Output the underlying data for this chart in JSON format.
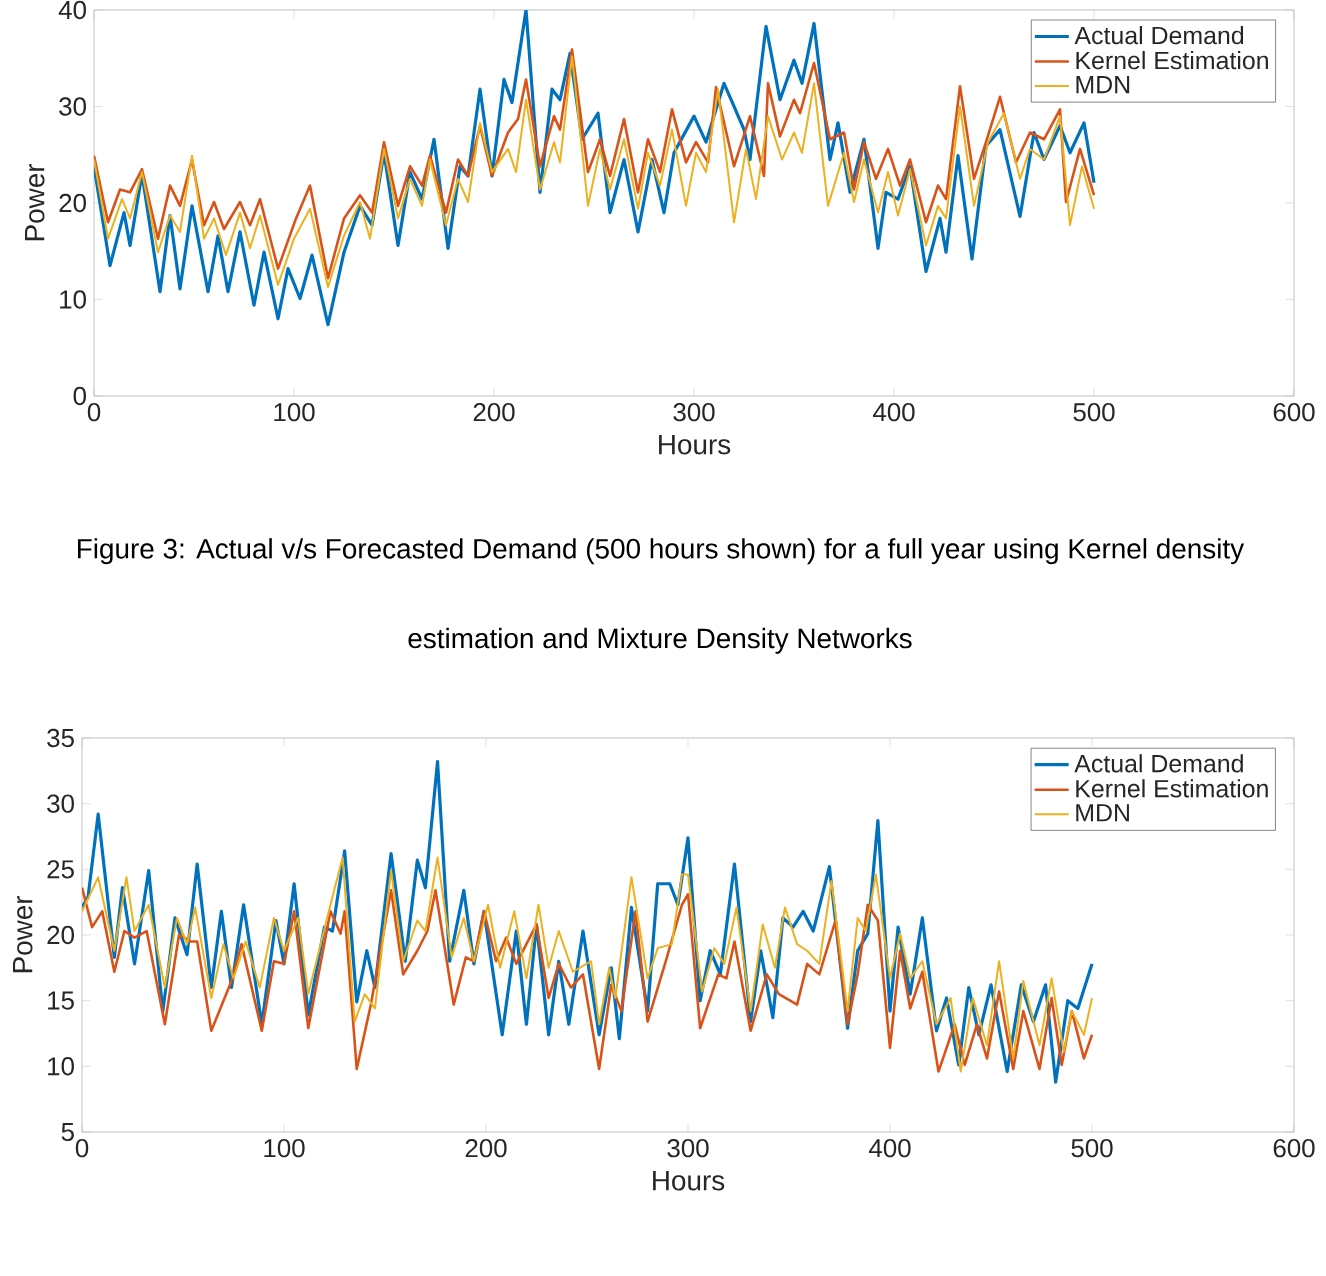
{
  "chart_data": [
    {
      "type": "line",
      "xlabel": "Hours",
      "ylabel": "Power",
      "xlim": [
        0,
        600
      ],
      "xticks": [
        0,
        100,
        200,
        300,
        400,
        500,
        600
      ],
      "ylim": [
        0,
        40
      ],
      "yticks": [
        0,
        10,
        20,
        30,
        40
      ],
      "legend": "top right",
      "annotations": [
        "Figure 3: Actual v/s Forecasted Demand (500 hours shown) for a full year using Kernel density estimation and Mixture Density Networks"
      ],
      "series": [
        {
          "name": "Actual Demand",
          "color": "#0072bd",
          "x": [
            0,
            8,
            15,
            18,
            24,
            33,
            38,
            43,
            49,
            57,
            62,
            67,
            73,
            80,
            85,
            92,
            97,
            103,
            109,
            117,
            125,
            133,
            139,
            145,
            152,
            158,
            164,
            170,
            177,
            183,
            187,
            193,
            199,
            205,
            209,
            216,
            223,
            229,
            233,
            238,
            244,
            252,
            258,
            265,
            272,
            279,
            285,
            290,
            300,
            306,
            315,
            320,
            325,
            328,
            336,
            343,
            350,
            354,
            360,
            368,
            372,
            378,
            385,
            392,
            396,
            402,
            408,
            416,
            423,
            426,
            432,
            439,
            446,
            453,
            463,
            470,
            475,
            483,
            488,
            495,
            500
          ],
          "values": [
            23.8,
            13.5,
            19,
            15.6,
            23,
            10.8,
            18.7,
            11.1,
            19.7,
            10.8,
            16.6,
            10.8,
            17,
            9.4,
            14.9,
            8,
            13.2,
            10.1,
            14.6,
            7.4,
            14.9,
            19.7,
            17.7,
            25.2,
            15.6,
            23.2,
            20.4,
            26.6,
            15.3,
            23.8,
            22.8,
            31.8,
            22.8,
            32.8,
            30.4,
            40,
            21.1,
            31.8,
            30.7,
            35.5,
            26.6,
            29.3,
            19,
            24.5,
            17,
            24.5,
            19,
            25.2,
            29,
            26.3,
            32.4,
            30,
            27.6,
            24.5,
            38.3,
            30.7,
            34.8,
            32.4,
            38.6,
            24.5,
            28.3,
            21.1,
            26.6,
            15.3,
            21.1,
            20.4,
            23.8,
            12.9,
            18.4,
            14.9,
            24.9,
            14.2,
            25.9,
            27.6,
            18.6,
            27.3,
            24.5,
            28,
            25.2,
            28.3,
            22.1
          ]
        },
        {
          "name": "Kernel Estimation",
          "color": "#d95319",
          "x": [
            0,
            7,
            13,
            18,
            24,
            32,
            38,
            43,
            49,
            55,
            60,
            65,
            73,
            78,
            83,
            92,
            101,
            108,
            117,
            125,
            133,
            139,
            145,
            152,
            158,
            164,
            168,
            176,
            182,
            187,
            193,
            199,
            207,
            212,
            216,
            223,
            230,
            233,
            239,
            247,
            253,
            258,
            265,
            272,
            277,
            283,
            289,
            296,
            301,
            307,
            311,
            320,
            328,
            335,
            337,
            343,
            350,
            353,
            360,
            368,
            375,
            380,
            385,
            391,
            397,
            403,
            408,
            416,
            422,
            426,
            433,
            440,
            446,
            453,
            461,
            468,
            475,
            483,
            486,
            493,
            500
          ],
          "values": [
            24.9,
            18,
            21.4,
            21.1,
            23.5,
            16.3,
            21.8,
            19.7,
            24.5,
            17.7,
            20.1,
            17.3,
            20.1,
            17.7,
            20.4,
            13.2,
            18.4,
            21.8,
            12.2,
            18.4,
            20.8,
            19,
            26.3,
            19.7,
            23.8,
            21.8,
            24.9,
            19,
            24.5,
            22.8,
            28,
            22.8,
            27.3,
            28.7,
            32.8,
            23.8,
            29,
            27.6,
            35.9,
            23.2,
            26.6,
            22.8,
            28.7,
            21.1,
            26.6,
            23.2,
            29.7,
            24.2,
            26.3,
            24.2,
            32,
            23.8,
            29,
            22.8,
            32.4,
            26.9,
            30.7,
            29.3,
            34.5,
            26.6,
            27.3,
            21.4,
            26.3,
            22.5,
            25.6,
            21.8,
            24.5,
            18,
            21.8,
            20.4,
            32.1,
            22.5,
            26.3,
            31,
            24.2,
            27.3,
            26.6,
            29.7,
            20.1,
            25.6,
            20.8
          ]
        },
        {
          "name": "MDN",
          "color": "#edb120",
          "x": [
            0,
            7,
            14,
            18,
            24,
            32,
            38,
            43,
            49,
            55,
            60,
            66,
            73,
            78,
            83,
            92,
            100,
            108,
            117,
            125,
            133,
            138,
            145,
            152,
            158,
            164,
            168,
            176,
            182,
            187,
            193,
            199,
            207,
            211,
            216,
            223,
            230,
            233,
            239,
            247,
            253,
            258,
            265,
            272,
            277,
            283,
            289,
            296,
            301,
            306,
            312,
            320,
            326,
            331,
            337,
            344,
            350,
            354,
            360,
            367,
            375,
            380,
            385,
            392,
            397,
            402,
            408,
            416,
            422,
            426,
            433,
            440,
            447,
            455,
            463,
            468,
            475,
            483,
            488,
            494,
            500
          ],
          "values": [
            24.5,
            16.3,
            20.4,
            18.4,
            23.2,
            14.9,
            18.7,
            17,
            24.9,
            16.3,
            18.4,
            14.6,
            19,
            15.3,
            18.7,
            11.5,
            16.3,
            19.4,
            11.3,
            16.6,
            20.1,
            16.3,
            25.6,
            18.4,
            22.5,
            19.7,
            24.5,
            17.7,
            22.5,
            20.1,
            28.3,
            23.2,
            25.6,
            23.2,
            30.7,
            21.4,
            26.3,
            24.2,
            35.2,
            19.7,
            25.6,
            21.4,
            26.6,
            19.4,
            25.2,
            21.8,
            27.6,
            19.7,
            25.2,
            23.2,
            31.8,
            18,
            25.6,
            20.4,
            29,
            24.5,
            27.3,
            25.2,
            32.4,
            19.7,
            25.2,
            20.1,
            24.5,
            19,
            23.2,
            18.7,
            23.5,
            15.6,
            19.7,
            18.4,
            30,
            19.7,
            26.3,
            29.3,
            22.5,
            25.6,
            24.5,
            29,
            17.7,
            23.8,
            19.4
          ]
        }
      ]
    },
    {
      "type": "line",
      "xlabel": "Hours",
      "ylabel": "Power",
      "xlim": [
        0,
        600
      ],
      "xticks": [
        0,
        100,
        200,
        300,
        400,
        500,
        600
      ],
      "ylim": [
        5,
        35
      ],
      "yticks": [
        5,
        10,
        15,
        20,
        25,
        30,
        35
      ],
      "legend": "top right",
      "series": [
        {
          "name": "Actual Demand",
          "color": "#0072bd",
          "x": [
            0,
            3,
            8,
            16,
            20,
            26,
            33,
            40,
            46,
            52,
            57,
            64,
            69,
            74,
            80,
            89,
            96,
            100,
            105,
            112,
            120,
            124,
            130,
            136,
            141,
            145,
            153,
            160,
            166,
            170,
            176,
            182,
            189,
            194,
            199,
            208,
            215,
            220,
            225,
            231,
            236,
            241,
            248,
            256,
            262,
            266,
            272,
            280,
            285,
            291,
            295,
            300,
            306,
            311,
            316,
            323,
            331,
            336,
            342,
            347,
            352,
            357,
            362,
            370,
            379,
            384,
            389,
            394,
            400,
            404,
            410,
            416,
            423,
            428,
            434,
            439,
            444,
            450,
            458,
            465,
            471,
            477,
            482,
            488,
            493,
            500
          ],
          "values": [
            22.1,
            22.9,
            29.2,
            18.3,
            23.6,
            17.8,
            24.9,
            14.2,
            21.3,
            18.5,
            25.4,
            16,
            21.8,
            16,
            22.3,
            13.2,
            21.1,
            17.8,
            23.9,
            13.9,
            20.6,
            20.3,
            26.4,
            14.9,
            18.8,
            16,
            26.2,
            18,
            25.7,
            23.6,
            33.2,
            18,
            23.4,
            17.8,
            21.8,
            12.4,
            20.3,
            13.2,
            20.8,
            12.4,
            18,
            13.2,
            20.3,
            12.4,
            17.5,
            12.1,
            22.1,
            14.2,
            23.9,
            23.9,
            22.3,
            27.4,
            15,
            18.8,
            17,
            25.4,
            13.4,
            18.8,
            13.7,
            21.3,
            20.6,
            21.8,
            20.3,
            25.2,
            12.9,
            18.8,
            20.1,
            28.7,
            14.2,
            20.6,
            15.5,
            21.3,
            12.7,
            15.2,
            10.1,
            16,
            12.4,
            16.2,
            9.6,
            16.2,
            13.4,
            16.2,
            8.8,
            15,
            14.4,
            17.8
          ]
        },
        {
          "name": "Kernel Estimation",
          "color": "#d95319",
          "x": [
            0,
            5,
            10,
            16,
            21,
            26,
            32,
            41,
            48,
            54,
            57,
            64,
            74,
            79,
            89,
            95,
            100,
            105,
            112,
            123,
            128,
            130,
            136,
            143,
            153,
            159,
            166,
            171,
            175,
            184,
            190,
            194,
            199,
            205,
            210,
            215,
            220,
            225,
            231,
            236,
            242,
            248,
            256,
            262,
            267,
            274,
            280,
            289,
            297,
            300,
            306,
            315,
            319,
            323,
            331,
            339,
            345,
            354,
            359,
            365,
            373,
            379,
            384,
            389,
            394,
            400,
            405,
            410,
            416,
            424,
            432,
            437,
            443,
            448,
            454,
            461,
            466,
            474,
            480,
            485,
            490,
            496,
            500
          ],
          "values": [
            23.6,
            20.6,
            21.8,
            17.2,
            20.3,
            19.8,
            20.3,
            13.2,
            20,
            19.5,
            19.5,
            12.7,
            16.5,
            19.3,
            12.7,
            18,
            17.8,
            21.8,
            12.9,
            21.8,
            20.1,
            21.8,
            9.8,
            14.7,
            23.4,
            17,
            18.8,
            20.3,
            23.4,
            14.7,
            18.3,
            18,
            21.8,
            18,
            19.8,
            17.8,
            19.3,
            20.8,
            15.2,
            17.8,
            16,
            17,
            9.8,
            16.2,
            14.2,
            21.8,
            13.4,
            18,
            22.3,
            23.1,
            12.9,
            17,
            16.7,
            19.5,
            12.7,
            17,
            15.5,
            14.7,
            17.8,
            17,
            21.1,
            13.2,
            17,
            22.3,
            21.1,
            11.4,
            18.8,
            14.4,
            17.2,
            9.6,
            13.2,
            10.1,
            13.2,
            10.6,
            15.7,
            9.8,
            14.2,
            9.8,
            15.2,
            10.1,
            14.2,
            10.6,
            12.4
          ]
        },
        {
          "name": "MDN",
          "color": "#edb120",
          "x": [
            0,
            8,
            16,
            22,
            26,
            33,
            41,
            47,
            52,
            56,
            64,
            70,
            75,
            81,
            88,
            95,
            100,
            107,
            112,
            123,
            129,
            135,
            140,
            145,
            153,
            159,
            166,
            170,
            176,
            183,
            189,
            194,
            201,
            207,
            214,
            220,
            226,
            231,
            236,
            243,
            252,
            256,
            261,
            264,
            272,
            280,
            285,
            292,
            297,
            300,
            307,
            313,
            318,
            324,
            331,
            337,
            343,
            348,
            354,
            359,
            365,
            371,
            379,
            384,
            388,
            393,
            400,
            405,
            410,
            416,
            423,
            430,
            435,
            441,
            448,
            454,
            461,
            466,
            474,
            480,
            486,
            490,
            496,
            500
          ],
          "values": [
            21.8,
            24.4,
            18.8,
            24.4,
            20.3,
            22.3,
            16,
            21.3,
            19.3,
            22.1,
            15.2,
            19.3,
            16.7,
            19.5,
            16,
            21.3,
            18.8,
            21.3,
            15.5,
            22.3,
            25.9,
            13.4,
            15.5,
            14.4,
            24.9,
            18,
            21.1,
            20.3,
            25.9,
            18.3,
            21.3,
            18,
            22.3,
            17.5,
            21.8,
            16.7,
            22.3,
            17.5,
            20.3,
            17.2,
            18,
            13.2,
            17.5,
            15.2,
            24.4,
            16.7,
            19,
            19.3,
            24.6,
            24.6,
            15.7,
            19,
            17.8,
            22.1,
            14.2,
            20.8,
            17.5,
            22.1,
            19.3,
            18.8,
            17.8,
            24.1,
            14.2,
            21.3,
            20.3,
            24.6,
            16.7,
            20.1,
            16.7,
            18,
            13.2,
            15.2,
            9.6,
            15.2,
            11.6,
            18,
            10.6,
            16.5,
            11.6,
            16.7,
            11.1,
            14.2,
            12.4,
            15.2
          ]
        }
      ]
    }
  ]
}
